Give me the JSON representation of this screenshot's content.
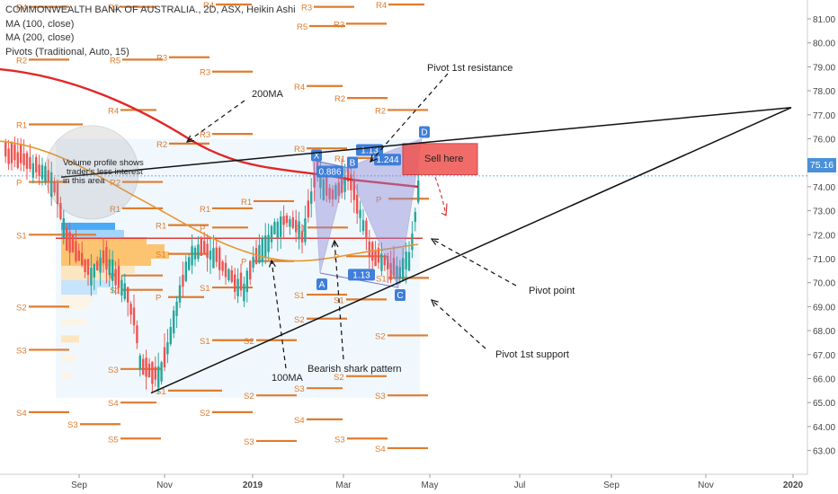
{
  "header": {
    "title": "COMMONWEALTH BANK OF AUSTRALIA., 2D, ASX, Heikin Ashi",
    "studies": [
      "MA (100, close)",
      "MA (200, close)",
      "Pivots (Traditional, Auto, 15)"
    ]
  },
  "current_price": "75.16",
  "chart_data": {
    "type": "candlestick",
    "y_ticks": [
      "81.00",
      "80.00",
      "79.00",
      "78.00",
      "77.00",
      "76.00",
      "75.00",
      "74.00",
      "73.00",
      "72.00",
      "71.00",
      "70.00",
      "69.00",
      "68.00",
      "67.00",
      "66.00",
      "65.00",
      "64.00",
      "63.00"
    ],
    "ylim": [
      62.8,
      81.6
    ],
    "x_ticks": [
      "Sep",
      "Nov",
      "2019",
      "Mar",
      "May",
      "Jul",
      "Sep",
      "Nov",
      "2020"
    ],
    "annotations": {
      "ma200": "200MA",
      "ma100": "100MA",
      "volume_note": "Volume profile shows trader's less interest in this area",
      "pivot_resistance": "Pivot 1st resistance",
      "pivot_point": "Pivot point",
      "pivot_support": "Pivot 1st support",
      "pattern": "Bearish shark pattern",
      "sell": "Sell here"
    },
    "pattern_points": [
      "X",
      "A",
      "B",
      "C",
      "D"
    ],
    "pattern_ratios": [
      "0.886",
      "1.13",
      "1.244",
      "1.13"
    ],
    "pivot_labels": [
      "R4",
      "R3",
      "R2",
      "R1",
      "P",
      "S1",
      "S2",
      "S3",
      "S4",
      "S5"
    ],
    "colors": {
      "up": "#26a69a",
      "down": "#ef5350",
      "ma200": "#e32626",
      "ma100": "#e8962e",
      "pivot": "#e07b2e",
      "pattern": "#8f8ad6"
    }
  }
}
